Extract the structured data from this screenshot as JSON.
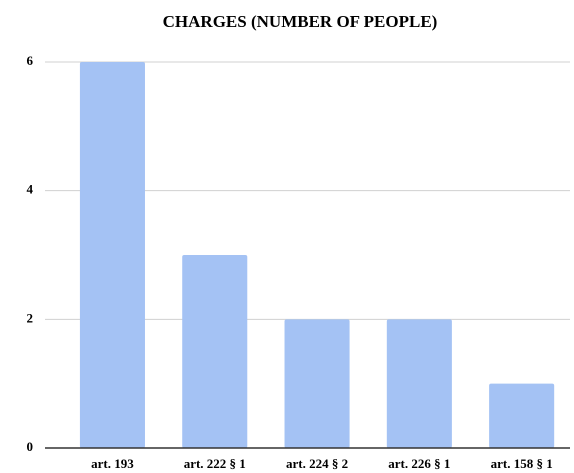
{
  "chart_data": {
    "type": "bar",
    "title": "CHARGES (NUMBER OF PEOPLE)",
    "categories": [
      "art. 193",
      "art. 222 § 1",
      "art. 224 § 2",
      "art. 226 § 1",
      "art. 158 § 1"
    ],
    "values": [
      6,
      3,
      2,
      2,
      1
    ],
    "color": "#a4c2f4",
    "ylim": [
      0,
      6
    ],
    "yticks": [
      0,
      2,
      4,
      6
    ],
    "grid": true
  }
}
